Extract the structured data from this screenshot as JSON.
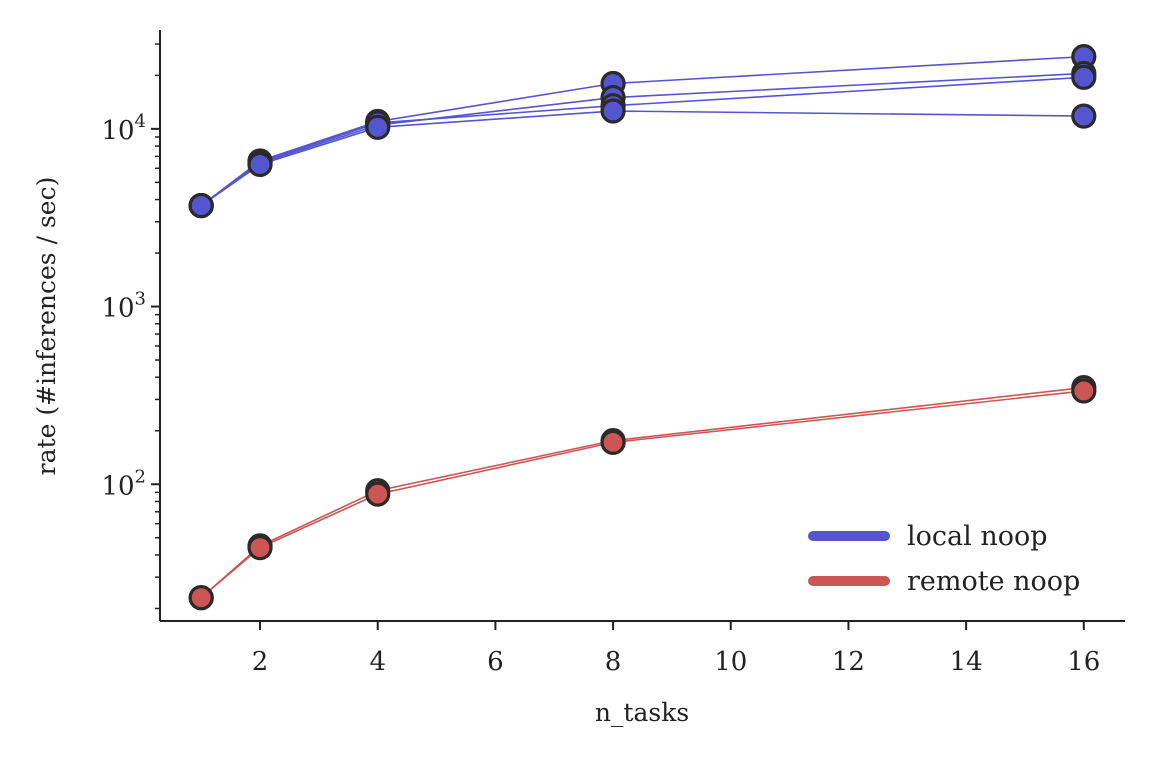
{
  "chart_data": {
    "type": "line",
    "xlabel": "n_tasks",
    "ylabel": "rate (#inferences / sec)",
    "yscale": "log",
    "xlim": [
      0.3,
      16.7
    ],
    "ylim": [
      17,
      36000
    ],
    "x_ticks": [
      2,
      4,
      6,
      8,
      10,
      12,
      14,
      16
    ],
    "x_tick_labels": [
      "2",
      "4",
      "6",
      "8",
      "10",
      "12",
      "14",
      "16"
    ],
    "y_major_ticks": [
      100,
      1000,
      10000
    ],
    "y_tick_labels": [
      {
        "base": "10",
        "exp": "2"
      },
      {
        "base": "10",
        "exp": "3"
      },
      {
        "base": "10",
        "exp": "4"
      }
    ],
    "grid": false,
    "legend_position": "bottom-right",
    "series": [
      {
        "name": "local noop",
        "color": "#5555d0",
        "group": "local noop",
        "x": [
          1,
          2,
          4,
          8,
          16
        ],
        "y": [
          3700,
          6600,
          11000,
          18000,
          25500
        ]
      },
      {
        "name": "",
        "color": "#5555d0",
        "group": "local noop",
        "x": [
          1,
          2,
          4,
          8,
          16
        ],
        "y": [
          3700,
          6400,
          10500,
          15000,
          20500
        ]
      },
      {
        "name": "",
        "color": "#5555d0",
        "group": "local noop",
        "x": [
          1,
          2,
          4,
          8,
          16
        ],
        "y": [
          3700,
          6500,
          10800,
          13500,
          19500
        ]
      },
      {
        "name": "",
        "color": "#5555d0",
        "group": "local noop",
        "x": [
          1,
          2,
          4,
          8,
          16
        ],
        "y": [
          3700,
          6300,
          10200,
          12600,
          11800
        ]
      },
      {
        "name": "remote noop",
        "color": "#cc5555",
        "group": "remote noop",
        "x": [
          1,
          2,
          4,
          8,
          16
        ],
        "y": [
          23,
          45,
          92,
          176,
          350
        ]
      },
      {
        "name": "",
        "color": "#cc5555",
        "group": "remote noop",
        "x": [
          1,
          2,
          4,
          8,
          16
        ],
        "y": [
          23,
          44,
          88,
          172,
          335
        ]
      }
    ],
    "legend": [
      {
        "label": "local noop",
        "color": "#5555d0"
      },
      {
        "label": "remote noop",
        "color": "#cc5555"
      }
    ]
  }
}
